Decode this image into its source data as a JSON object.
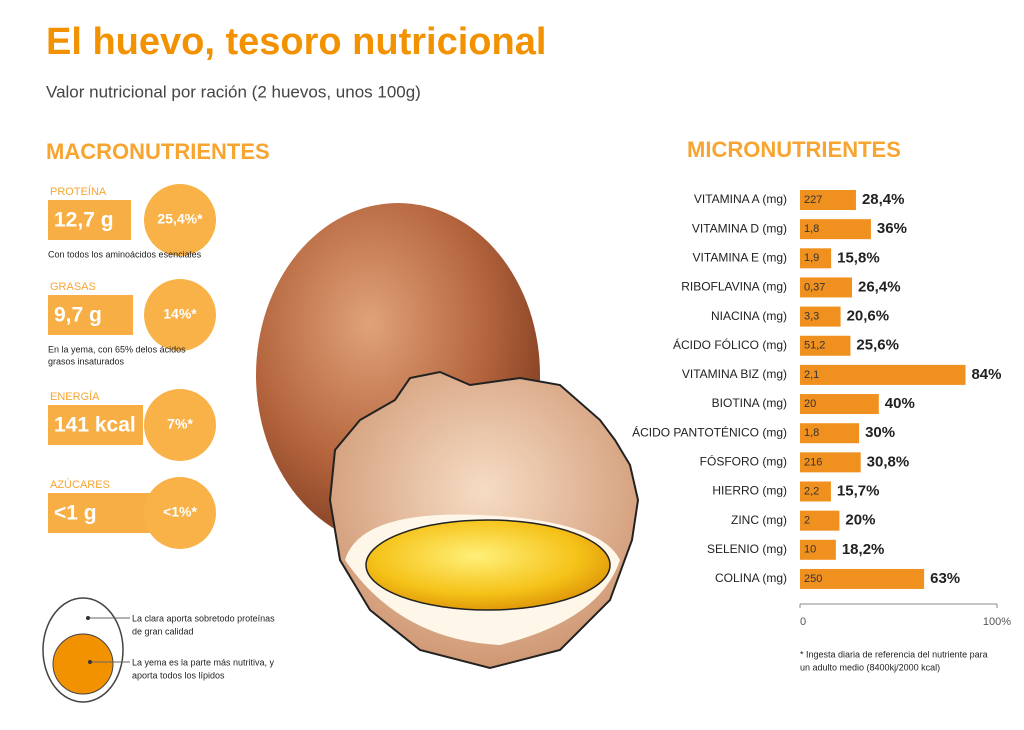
{
  "header": {
    "title": "El huevo, tesoro nutricional",
    "subtitle": "Valor  nutricional por ración (2 huevos, unos 100g)"
  },
  "macronutrients": {
    "heading": "MACRONUTRIENTES",
    "items": [
      {
        "label": "PROTEÍNA",
        "amount": "12,7 g",
        "percent": "25,4%*",
        "note": [
          "Con todos los aminoácidos esenciales"
        ]
      },
      {
        "label": "GRASAS",
        "amount": "9,7 g",
        "percent": "14%*",
        "note": [
          "En la yema, con 65% delos ácidos",
          "grasos insaturados"
        ]
      },
      {
        "label": "ENERGÍA",
        "amount": "141 kcal",
        "percent": "7%*"
      },
      {
        "label": "AZÚCARES",
        "amount": "<1 g",
        "percent": "<1%*"
      }
    ]
  },
  "egg_legend": {
    "white": [
      "La clara aporta sobretodo proteínas",
      "de gran calidad"
    ],
    "yolk": [
      "La yema es la parte más nutritiva, y",
      "aporta todos los lípidos"
    ]
  },
  "chart_data": {
    "type": "bar",
    "orientation": "horizontal",
    "title": "MICRONUTRIENTES",
    "categories": [
      "VITAMINA A (mg)",
      "VITAMINA D (mg)",
      "VITAMINA E (mg)",
      "RIBOFLAVINA (mg)",
      "NIACINA (mg)",
      "ÁCIDO FÓLICO (mg)",
      "VITAMINA BIZ (mg)",
      "BIOTINA (mg)",
      "ÁCIDO PANTOTÉNICO (mg)",
      "FÓSFORO (mg)",
      "HIERRO (mg)",
      "ZINC (mg)",
      "SELENIO (mg)",
      "COLINA (mg)"
    ],
    "amounts": [
      "227",
      "1,8",
      "1,9",
      "0,37",
      "3,3",
      "51,2",
      "2,1",
      "20",
      "1,8",
      "216",
      "2,2",
      "2",
      "10",
      "250"
    ],
    "values": [
      28.4,
      36,
      15.8,
      26.4,
      20.6,
      25.6,
      84,
      40,
      30,
      30.8,
      15.7,
      20,
      18.2,
      63
    ],
    "value_labels": [
      "28,4%",
      "36%",
      "15,8%",
      "26,4%",
      "20,6%",
      "25,6%",
      "84%",
      "40%",
      "30%",
      "30,8%",
      "15,7%",
      "20%",
      "18,2%",
      "63%"
    ],
    "color": "#f0901e",
    "xlim": [
      0,
      100
    ],
    "xticks": [
      0,
      {
        "value": 100,
        "label": "100%"
      }
    ],
    "footnote": [
      "* Ingesta diaria de referencia del nutriente para",
      "un adulto medio (8400kj/2000 kcal)"
    ]
  }
}
